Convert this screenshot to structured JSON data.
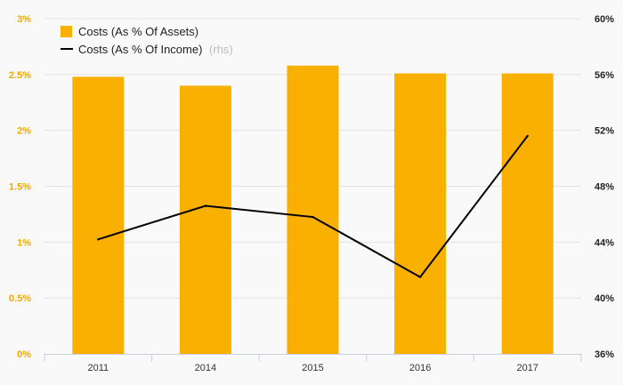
{
  "chart_data": {
    "type": "bar",
    "categories": [
      "2011",
      "2014",
      "2015",
      "2016",
      "2017"
    ],
    "series": [
      {
        "name": "Costs (As % Of Assets)",
        "type": "bar",
        "axis": "left",
        "color": "#f9b000",
        "values": [
          2.48,
          2.4,
          2.58,
          2.51,
          2.51
        ]
      },
      {
        "name": "Costs (As % Of Income)",
        "suffix": "(rhs)",
        "type": "line",
        "axis": "right",
        "color": "#000000",
        "values": [
          44.2,
          46.6,
          45.8,
          41.5,
          51.6
        ]
      }
    ],
    "left_axis": {
      "ylim": [
        0,
        3
      ],
      "ticks": [
        0,
        0.5,
        1,
        1.5,
        2,
        2.5,
        3
      ],
      "tick_labels": [
        "0%",
        "0.5%",
        "1%",
        "1.5%",
        "2%",
        "2.5%",
        "3%"
      ],
      "color": "#f5a800"
    },
    "right_axis": {
      "ylim": [
        36,
        60
      ],
      "ticks": [
        36,
        40,
        44,
        48,
        52,
        56,
        60
      ],
      "tick_labels": [
        "36%",
        "40%",
        "44%",
        "48%",
        "52%",
        "56%",
        "60%"
      ],
      "color": "#222222"
    },
    "legend_position": "top-left",
    "grid": true
  }
}
